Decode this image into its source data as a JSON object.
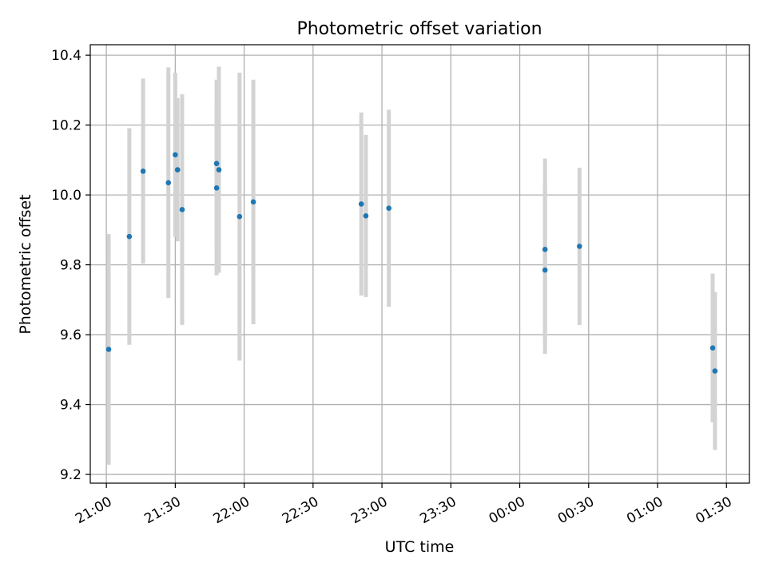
{
  "chart_data": {
    "type": "scatter",
    "title": "Photometric offset variation",
    "xlabel": "UTC time",
    "ylabel": "Photometric offset",
    "x_tick_labels": [
      "21:00",
      "21:30",
      "22:00",
      "22:30",
      "23:00",
      "23:30",
      "00:00",
      "00:30",
      "01:00",
      "01:30"
    ],
    "y_ticks": [
      9.2,
      9.4,
      9.6,
      9.8,
      10.0,
      10.2,
      10.4
    ],
    "y_tick_labels": [
      "9.2",
      "9.4",
      "9.6",
      "9.8",
      "10.0",
      "10.2",
      "10.4"
    ],
    "ylim": [
      9.175,
      10.43
    ],
    "xlim": [
      "20:53",
      "01:40"
    ],
    "grid": true,
    "colors": {
      "points": "#1f77b4",
      "errorbars": "#d3d3d3",
      "grid": "#b0b0b0"
    },
    "points": [
      {
        "t": "21:01",
        "y": 9.558,
        "yerr": 0.33
      },
      {
        "t": "21:10",
        "y": 9.881,
        "yerr": 0.31
      },
      {
        "t": "21:16",
        "y": 10.068,
        "yerr": 0.265
      },
      {
        "t": "21:27",
        "y": 10.035,
        "yerr": 0.33
      },
      {
        "t": "21:30",
        "y": 10.115,
        "yerr": 0.235
      },
      {
        "t": "21:31",
        "y": 10.072,
        "yerr": 0.205
      },
      {
        "t": "21:33",
        "y": 9.958,
        "yerr": 0.33
      },
      {
        "t": "21:48",
        "y": 10.02,
        "yerr": 0.25
      },
      {
        "t": "21:48",
        "y": 10.09,
        "yerr": 0.24
      },
      {
        "t": "21:49",
        "y": 10.072,
        "yerr": 0.295
      },
      {
        "t": "21:58",
        "y": 9.938,
        "yerr": 0.412
      },
      {
        "t": "22:04",
        "y": 9.98,
        "yerr": 0.35
      },
      {
        "t": "22:51",
        "y": 9.974,
        "yerr": 0.262
      },
      {
        "t": "22:53",
        "y": 9.94,
        "yerr": 0.232
      },
      {
        "t": "23:03",
        "y": 9.962,
        "yerr": 0.282
      },
      {
        "t": "00:11",
        "y": 9.844,
        "yerr": 0.26
      },
      {
        "t": "00:11",
        "y": 9.785,
        "yerr": 0.24
      },
      {
        "t": "00:26",
        "y": 9.853,
        "yerr": 0.225
      },
      {
        "t": "01:24",
        "y": 9.562,
        "yerr": 0.213
      },
      {
        "t": "01:25",
        "y": 9.496,
        "yerr": 0.226
      }
    ]
  }
}
